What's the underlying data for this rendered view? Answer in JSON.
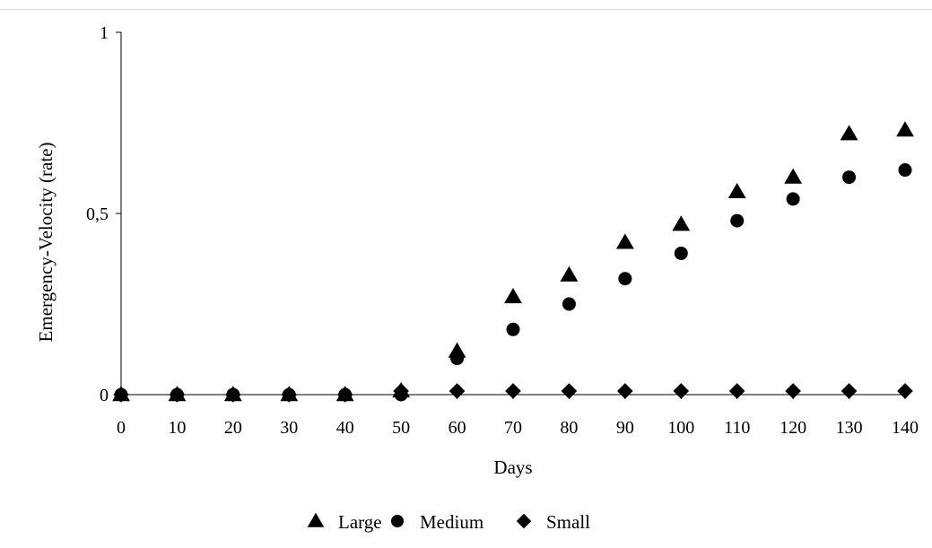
{
  "chart_data": {
    "type": "scatter",
    "xlabel": "Days",
    "ylabel": "Emergency-Velocity (rate)",
    "x": [
      0,
      10,
      20,
      30,
      40,
      50,
      60,
      70,
      80,
      90,
      100,
      110,
      120,
      130,
      140
    ],
    "xlim": [
      0,
      140
    ],
    "ylim": [
      0,
      1
    ],
    "x_ticks": [
      "0",
      "10",
      "20",
      "30",
      "40",
      "50",
      "60",
      "70",
      "80",
      "90",
      "100",
      "110",
      "120",
      "130",
      "140"
    ],
    "y_ticks": [
      {
        "value": 0,
        "label": "0"
      },
      {
        "value": 0.5,
        "label": "0,5"
      },
      {
        "value": 1,
        "label": "1"
      }
    ],
    "grid": false,
    "legend_position": "bottom",
    "series": [
      {
        "name": "Large",
        "marker": "triangle",
        "color": "#000000",
        "values": [
          0,
          0,
          0,
          0,
          0,
          0.01,
          0.12,
          0.27,
          0.33,
          0.42,
          0.47,
          0.56,
          0.6,
          0.72,
          0.73
        ]
      },
      {
        "name": "Medium",
        "marker": "circle",
        "color": "#000000",
        "values": [
          0,
          0,
          0,
          0,
          0,
          0,
          0.1,
          0.18,
          0.25,
          0.32,
          0.39,
          0.48,
          0.54,
          0.6,
          0.62
        ]
      },
      {
        "name": "Small",
        "marker": "diamond",
        "color": "#000000",
        "values": [
          0,
          0,
          0,
          0,
          0,
          0.01,
          0.01,
          0.01,
          0.01,
          0.01,
          0.01,
          0.01,
          0.01,
          0.01,
          0.01
        ]
      }
    ]
  }
}
